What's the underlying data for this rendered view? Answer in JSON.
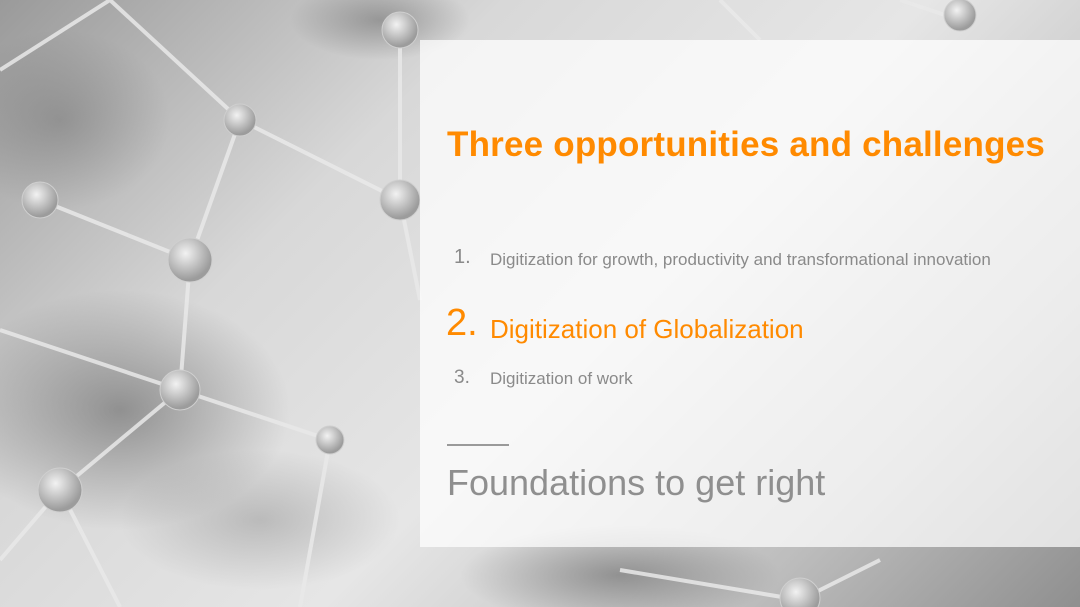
{
  "slide": {
    "title": "Three opportunities and challenges",
    "items": [
      {
        "number": "1.",
        "text": "Digitization for growth, productivity and transformational innovation"
      },
      {
        "number": "2.",
        "text": "Digitization of Globalization"
      },
      {
        "number": "3.",
        "text": "Digitization of work"
      }
    ],
    "subtitle": "Foundations to get right"
  },
  "colors": {
    "accent": "#ff8a00",
    "muted_text": "#8a8a8a",
    "panel": "#ffffff"
  }
}
